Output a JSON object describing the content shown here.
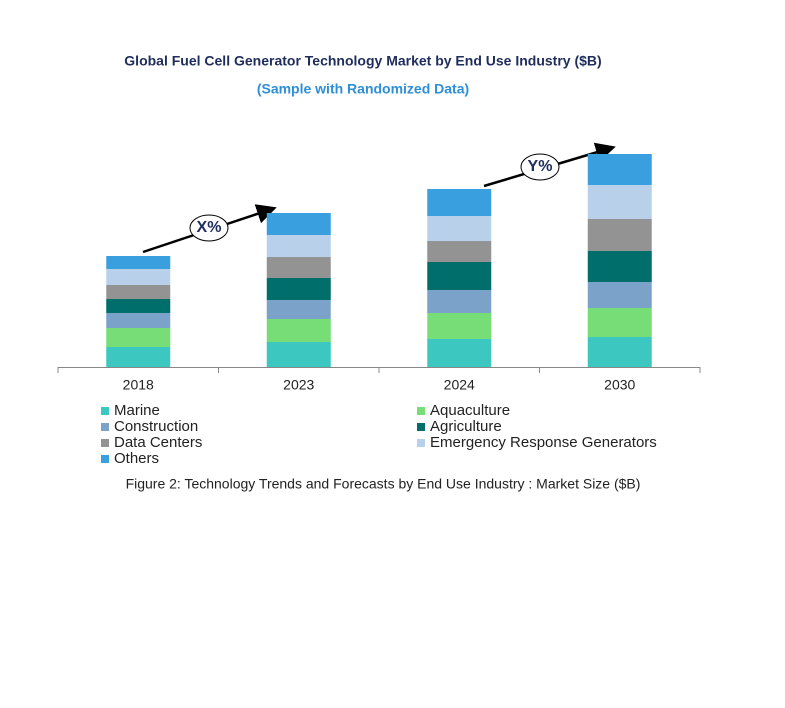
{
  "chart_data": {
    "type": "stacked_bar",
    "title": "Global Fuel Cell Generator Technology Market by End Use Industry ($B)",
    "subtitle": "(Sample with Randomized Data)",
    "caption": "Figure 2: Technology  Trends  and Forecasts by  End Use Industry   : Market Size ($B)",
    "annotations": [
      "X%",
      "Y%"
    ],
    "categories": [
      "2018",
      "2023",
      "2024",
      "2030"
    ],
    "series": [
      {
        "name": "Marine",
        "color": "#3cc8c0",
        "values": [
          2.0,
          2.5,
          2.8,
          3.0
        ]
      },
      {
        "name": "Aquaculture",
        "color": "#77dd77",
        "values": [
          1.9,
          2.3,
          2.6,
          2.9
        ]
      },
      {
        "name": "Construction",
        "color": "#7ba3c9",
        "values": [
          1.5,
          1.9,
          2.3,
          2.6
        ]
      },
      {
        "name": "Agriculture",
        "color": "#006e6a",
        "values": [
          1.4,
          2.2,
          2.8,
          3.1
        ]
      },
      {
        "name": "Data Centers",
        "color": "#939393",
        "values": [
          1.4,
          2.1,
          2.1,
          3.2
        ]
      },
      {
        "name": "Emergency Response Generators",
        "color": "#b8d0ea",
        "values": [
          1.6,
          2.2,
          2.5,
          3.4
        ]
      },
      {
        "name": "Others",
        "color": "#3a9fdf",
        "values": [
          1.3,
          2.2,
          2.7,
          3.1
        ]
      }
    ]
  }
}
